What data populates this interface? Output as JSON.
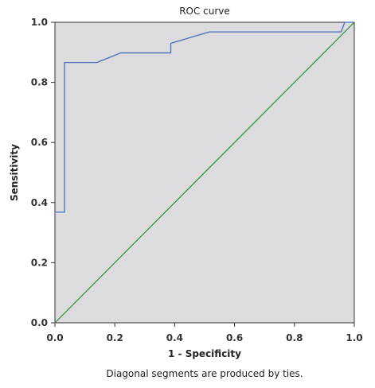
{
  "chart_data": {
    "type": "line",
    "title": "ROC curve",
    "xlabel": "1 - Specificity",
    "ylabel": "Sensitivity",
    "xlim": [
      0.0,
      1.0
    ],
    "ylim": [
      0.0,
      1.0
    ],
    "x_ticks": [
      "0.0",
      "0.2",
      "0.4",
      "0.6",
      "0.8",
      "1.0"
    ],
    "y_ticks": [
      "0.0",
      "0.2",
      "0.4",
      "0.6",
      "0.8",
      "1.0"
    ],
    "grid": false,
    "legend": "none",
    "footnote": "Diagonal segments are produced by ties.",
    "colors": {
      "plot_background": "#dcdcdf",
      "roc_line": "#4a6fb5",
      "reference_line": "#2a8a3a"
    },
    "series": [
      {
        "x": [
          0.0,
          0.032,
          0.032,
          0.14,
          0.22,
          0.387,
          0.387,
          0.516,
          0.956,
          0.968,
          1.0
        ],
        "y": [
          0.368,
          0.368,
          0.866,
          0.866,
          0.898,
          0.898,
          0.93,
          0.968,
          0.968,
          1.0,
          1.0
        ]
      },
      {
        "x": [
          0.0,
          1.0
        ],
        "y": [
          0.0,
          1.0
        ]
      }
    ]
  }
}
